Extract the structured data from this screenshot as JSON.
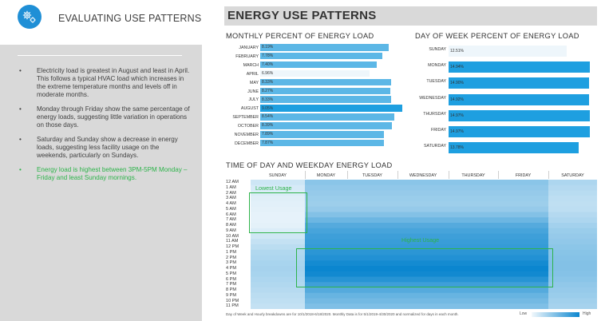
{
  "left": {
    "title": "EVALUATING USE PATTERNS",
    "bullets": [
      "Electricity load is greatest in August and least in April. This follows a typical HVAC load which increases in the extreme temperature months and levels off in moderate months.",
      "Monday through Friday show the same percentage of energy loads, suggesting little variation in operations on those days.",
      "Saturday and Sunday show a decrease in energy loads, suggesting less facility usage on the weekends, particularly on Sundays.",
      "Energy load is highest between 3PM-5PM Monday – Friday and least Sunday mornings."
    ]
  },
  "main_title": "ENERGY USE PATTERNS",
  "footnote": "Day of Week and Hourly breakdowns are for 10/1/2018-6/18/2020. Monthly Data is for 5/1/2019-4/30/2020 and normalized for days in each month.",
  "legend": {
    "low": "Low",
    "high": "High"
  },
  "annotations": {
    "lowest": "Lowest Usage",
    "highest": "Highest Usage"
  },
  "colors": {
    "accent": "#1f8fd6",
    "bar_light": "#5cb7e6",
    "bar_dark": "#1e9fe0",
    "bar_min": "#eef6fb",
    "annotation": "#2db34a"
  },
  "chart_data": [
    {
      "type": "bar",
      "title": "MONTHLY PERCENT OF ENERGY LOAD",
      "categories": [
        "JANUARY",
        "FEBRUARY",
        "MARCH",
        "APRIL",
        "MAY",
        "JUNE",
        "JULY",
        "AUGUST",
        "SEPTEMBER",
        "OCTOBER",
        "NOVEMBER",
        "DECEMBER"
      ],
      "values": [
        8.19,
        7.78,
        7.4,
        6.96,
        8.33,
        8.27,
        8.33,
        9.05,
        8.54,
        8.39,
        7.89,
        7.87
      ],
      "labels": [
        "8.19%",
        "7.78%",
        "7.40%",
        "6.96%",
        "8.33%",
        "8.27%",
        "8.33%",
        "9.05%",
        "8.54%",
        "8.39%",
        "7.89%",
        "7.87%"
      ],
      "orientation": "horizontal"
    },
    {
      "type": "bar",
      "title": "DAY OF WEEK PERCENT OF ENERGY LOAD",
      "categories": [
        "SUNDAY",
        "MONDAY",
        "TUESDAY",
        "WEDNESDAY",
        "THURSDAY",
        "FRIDAY",
        "SATURDAY"
      ],
      "values": [
        12.51,
        14.94,
        14.9,
        14.92,
        14.97,
        14.97,
        13.78
      ],
      "labels": [
        "12.51%",
        "14.94%",
        "14.90%",
        "14.92%",
        "14.97%",
        "14.97%",
        "13.78%"
      ],
      "orientation": "horizontal"
    },
    {
      "type": "heatmap",
      "title": "TIME OF DAY AND WEEKDAY ENERGY LOAD",
      "x": [
        "SUNDAY",
        "MONDAY",
        "TUESDAY",
        "WEDNESDAY",
        "THURSDAY",
        "FRIDAY",
        "SATURDAY"
      ],
      "y": [
        "12 AM",
        "1 AM",
        "2 AM",
        "3 AM",
        "4 AM",
        "5 AM",
        "6 AM",
        "7 AM",
        "8 AM",
        "9 AM",
        "10 AM",
        "11 AM",
        "12 PM",
        "1 PM",
        "2 PM",
        "3 PM",
        "4 PM",
        "5 PM",
        "6 PM",
        "7 PM",
        "8 PM",
        "9 PM",
        "10 PM",
        "11 PM"
      ],
      "values": [
        [
          0.16,
          0.45,
          0.45,
          0.45,
          0.45,
          0.45,
          0.3
        ],
        [
          0.12,
          0.42,
          0.42,
          0.42,
          0.42,
          0.42,
          0.27
        ],
        [
          0.1,
          0.4,
          0.4,
          0.4,
          0.4,
          0.4,
          0.25
        ],
        [
          0.08,
          0.38,
          0.38,
          0.38,
          0.38,
          0.38,
          0.23
        ],
        [
          0.07,
          0.37,
          0.37,
          0.37,
          0.37,
          0.37,
          0.22
        ],
        [
          0.06,
          0.4,
          0.4,
          0.4,
          0.4,
          0.4,
          0.23
        ],
        [
          0.05,
          0.48,
          0.48,
          0.48,
          0.48,
          0.48,
          0.27
        ],
        [
          0.05,
          0.58,
          0.58,
          0.58,
          0.58,
          0.58,
          0.3
        ],
        [
          0.06,
          0.68,
          0.68,
          0.68,
          0.68,
          0.68,
          0.34
        ],
        [
          0.1,
          0.74,
          0.74,
          0.74,
          0.74,
          0.74,
          0.38
        ],
        [
          0.15,
          0.78,
          0.78,
          0.78,
          0.78,
          0.78,
          0.4
        ],
        [
          0.2,
          0.8,
          0.8,
          0.8,
          0.8,
          0.8,
          0.42
        ],
        [
          0.24,
          0.82,
          0.82,
          0.82,
          0.82,
          0.82,
          0.44
        ],
        [
          0.28,
          0.86,
          0.86,
          0.86,
          0.86,
          0.86,
          0.46
        ],
        [
          0.3,
          0.9,
          0.9,
          0.9,
          0.9,
          0.9,
          0.47
        ],
        [
          0.32,
          0.96,
          0.96,
          0.96,
          0.96,
          0.96,
          0.48
        ],
        [
          0.33,
          1.0,
          1.0,
          1.0,
          1.0,
          1.0,
          0.48
        ],
        [
          0.32,
          0.97,
          0.97,
          0.97,
          0.97,
          0.97,
          0.47
        ],
        [
          0.3,
          0.88,
          0.88,
          0.88,
          0.88,
          0.88,
          0.45
        ],
        [
          0.28,
          0.78,
          0.78,
          0.78,
          0.78,
          0.78,
          0.42
        ],
        [
          0.26,
          0.68,
          0.68,
          0.68,
          0.68,
          0.68,
          0.4
        ],
        [
          0.24,
          0.6,
          0.6,
          0.6,
          0.6,
          0.6,
          0.38
        ],
        [
          0.22,
          0.55,
          0.55,
          0.55,
          0.55,
          0.55,
          0.35
        ],
        [
          0.2,
          0.5,
          0.5,
          0.5,
          0.5,
          0.5,
          0.33
        ]
      ],
      "legend_labels": [
        "Low",
        "High"
      ]
    }
  ]
}
